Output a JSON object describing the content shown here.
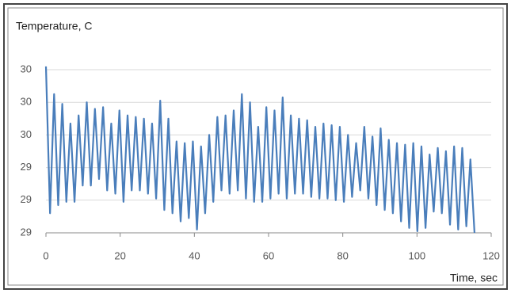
{
  "chart_data": {
    "type": "line",
    "y_label": "Temperature, C",
    "x_label": "Time, sec",
    "color": "#4a7ebb",
    "grid": true,
    "xlim": [
      0,
      120
    ],
    "xticks": [
      0,
      20,
      40,
      60,
      80,
      100,
      120
    ],
    "ylim": [
      29.0,
      30.0
    ],
    "yticks": [
      {
        "value": 29.0,
        "label": "29"
      },
      {
        "value": 29.2,
        "label": "29"
      },
      {
        "value": 29.4,
        "label": "29"
      },
      {
        "value": 29.6,
        "label": "30"
      },
      {
        "value": 29.8,
        "label": "30"
      },
      {
        "value": 30.0,
        "label": "30"
      }
    ],
    "x": [
      0,
      1.1,
      2.2,
      3.3,
      4.4,
      5.5,
      6.6,
      7.7,
      8.8,
      9.9,
      11,
      12.1,
      13.2,
      14.3,
      15.4,
      16.5,
      17.6,
      18.7,
      19.8,
      20.9,
      22,
      23.1,
      24.2,
      25.3,
      26.4,
      27.5,
      28.6,
      29.7,
      30.8,
      31.9,
      33,
      34.1,
      35.2,
      36.3,
      37.4,
      38.5,
      39.6,
      40.7,
      41.8,
      42.9,
      44,
      45.1,
      46.2,
      47.3,
      48.4,
      49.5,
      50.6,
      51.7,
      52.8,
      53.9,
      55,
      56.1,
      57.2,
      58.3,
      59.4,
      60.5,
      61.6,
      62.7,
      63.8,
      64.9,
      66,
      67.1,
      68.2,
      69.3,
      70.4,
      71.5,
      72.6,
      73.7,
      74.8,
      75.9,
      77,
      78.1,
      79.2,
      80.3,
      81.4,
      82.5,
      83.6,
      84.7,
      85.8,
      86.9,
      88,
      89.1,
      90.2,
      91.3,
      92.4,
      93.5,
      94.6,
      95.7,
      96.8,
      97.9,
      99,
      100.1,
      101.2,
      102.3,
      103.4,
      104.5,
      105.6,
      106.7,
      107.8,
      108.9,
      110,
      111.1,
      112.2,
      113.3,
      114.4,
      115.5
    ],
    "values": [
      30.02,
      29.12,
      29.85,
      29.17,
      29.79,
      29.19,
      29.67,
      29.19,
      29.72,
      29.29,
      29.8,
      29.29,
      29.76,
      29.33,
      29.77,
      29.26,
      29.67,
      29.24,
      29.75,
      29.19,
      29.72,
      29.26,
      29.71,
      29.26,
      29.7,
      29.24,
      29.67,
      29.21,
      29.81,
      29.14,
      29.7,
      29.12,
      29.56,
      29.07,
      29.55,
      29.09,
      29.56,
      29.02,
      29.53,
      29.12,
      29.6,
      29.19,
      29.71,
      29.26,
      29.72,
      29.24,
      29.75,
      29.26,
      29.85,
      29.21,
      29.8,
      29.19,
      29.65,
      29.19,
      29.77,
      29.21,
      29.75,
      29.24,
      29.83,
      29.21,
      29.72,
      29.24,
      29.7,
      29.24,
      29.69,
      29.22,
      29.65,
      29.21,
      29.67,
      29.21,
      29.66,
      29.2,
      29.65,
      29.19,
      29.6,
      29.22,
      29.55,
      29.26,
      29.65,
      29.21,
      29.59,
      29.17,
      29.64,
      29.14,
      29.57,
      29.12,
      29.55,
      29.07,
      29.54,
      29.03,
      29.55,
      29.01,
      29.53,
      29.03,
      29.48,
      29.13,
      29.52,
      29.12,
      29.5,
      29.05,
      29.53,
      29.02,
      29.52,
      29.04,
      29.45,
      29.0
    ]
  }
}
